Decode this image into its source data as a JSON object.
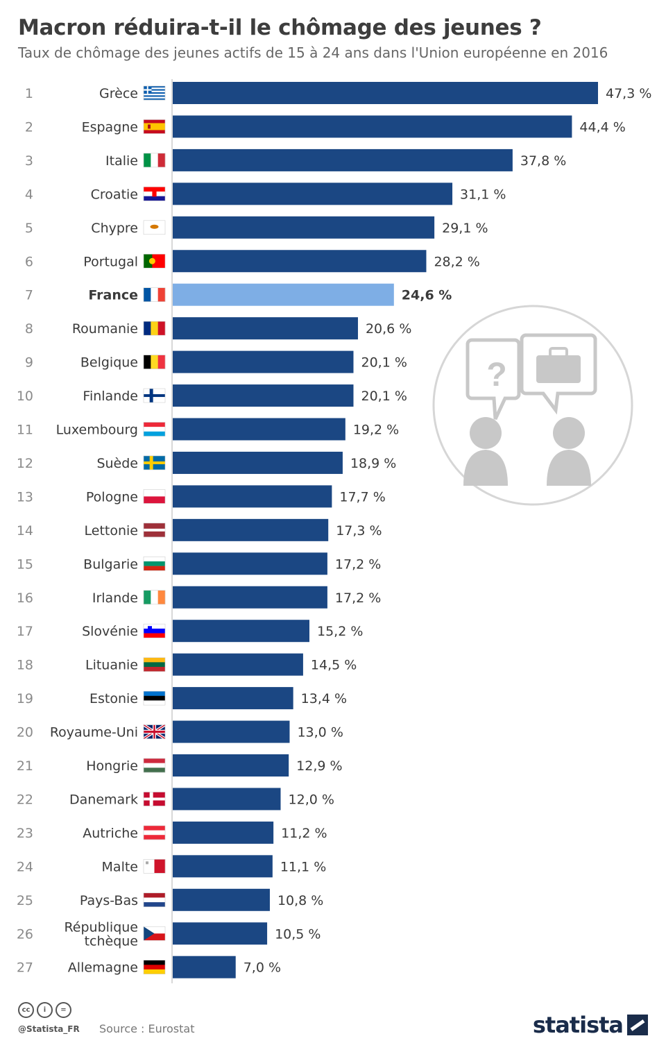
{
  "header": {
    "title": "Macron réduira-t-il le chômage des jeunes ?",
    "subtitle": "Taux de chômage des jeunes actifs de 15 à 24 ans dans l'Union européenne en 2016"
  },
  "colors": {
    "bar": "#1b4783",
    "highlight": "#7eaee5",
    "illustration": "#c8c8c8"
  },
  "chart_data": {
    "type": "bar",
    "orientation": "horizontal",
    "highlight": "France",
    "value_suffix": " %",
    "decimal_separator": ",",
    "xlim": [
      0,
      47.3
    ],
    "grid": false,
    "categories": [
      "Grèce",
      "Espagne",
      "Italie",
      "Croatie",
      "Chypre",
      "Portugal",
      "France",
      "Roumanie",
      "Belgique",
      "Finlande",
      "Luxembourg",
      "Suède",
      "Pologne",
      "Lettonie",
      "Bulgarie",
      "Irlande",
      "Slovénie",
      "Lituanie",
      "Estonie",
      "Royaume-Uni",
      "Hongrie",
      "Danemark",
      "Autriche",
      "Malte",
      "Pays-Bas",
      "République tchèque",
      "Allemagne"
    ],
    "ranks": [
      "1",
      "2",
      "3",
      "4",
      "5",
      "6",
      "7",
      "8",
      "9",
      "10",
      "11",
      "12",
      "13",
      "14",
      "15",
      "16",
      "17",
      "18",
      "19",
      "20",
      "21",
      "22",
      "23",
      "24",
      "25",
      "26",
      "27"
    ],
    "values": [
      47.3,
      44.4,
      37.8,
      31.1,
      29.1,
      28.2,
      24.6,
      20.6,
      20.1,
      20.1,
      19.2,
      18.9,
      17.7,
      17.3,
      17.2,
      17.2,
      15.2,
      14.5,
      13.4,
      13.0,
      12.9,
      12.0,
      11.2,
      11.1,
      10.8,
      10.5,
      7.0
    ],
    "flags": [
      "greece-flag-icon",
      "spain-flag-icon",
      "italy-flag-icon",
      "croatia-flag-icon",
      "cyprus-flag-icon",
      "portugal-flag-icon",
      "france-flag-icon",
      "romania-flag-icon",
      "belgium-flag-icon",
      "finland-flag-icon",
      "luxembourg-flag-icon",
      "sweden-flag-icon",
      "poland-flag-icon",
      "latvia-flag-icon",
      "bulgaria-flag-icon",
      "ireland-flag-icon",
      "slovenia-flag-icon",
      "lithuania-flag-icon",
      "estonia-flag-icon",
      "uk-flag-icon",
      "hungary-flag-icon",
      "denmark-flag-icon",
      "austria-flag-icon",
      "malta-flag-icon",
      "netherlands-flag-icon",
      "czech-flag-icon",
      "germany-flag-icon"
    ]
  },
  "footer": {
    "license_icons": [
      "cc-icon",
      "by-icon",
      "nd-icon"
    ],
    "handle": "@Statista_FR",
    "source": "Source : Eurostat",
    "brand": "statista"
  }
}
